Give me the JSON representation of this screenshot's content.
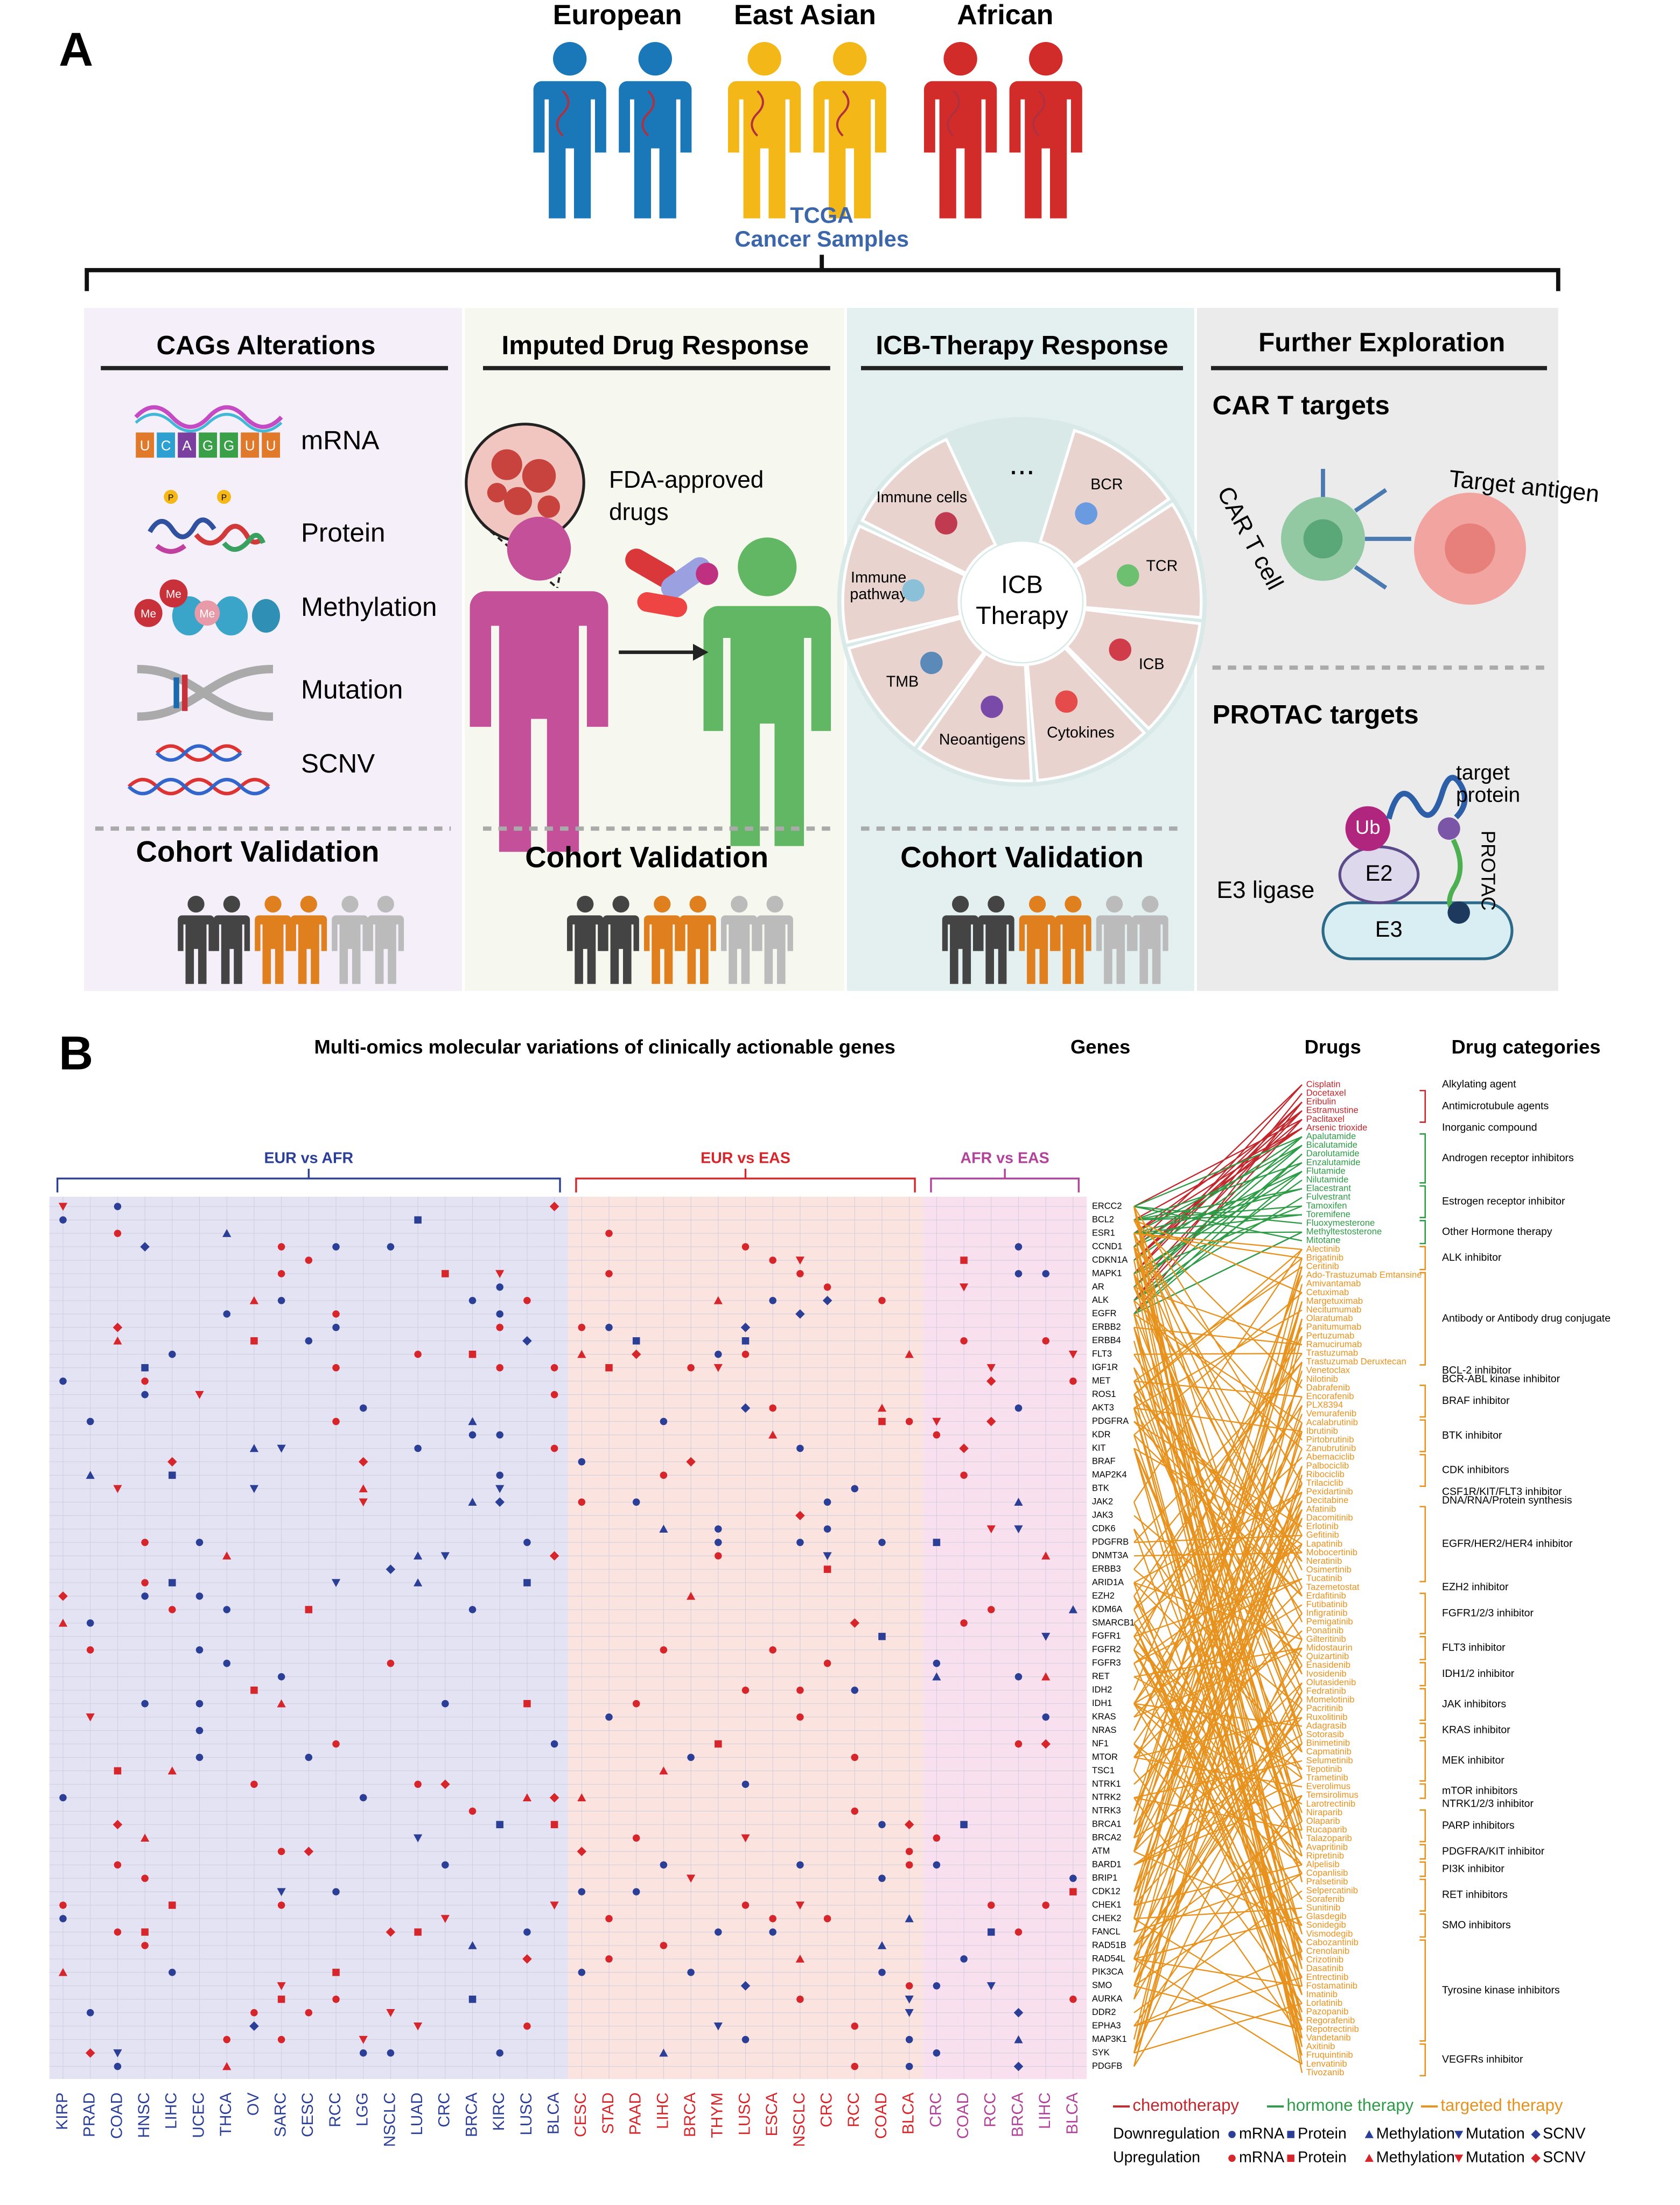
{
  "panel_a": {
    "label": "A",
    "populations": [
      "European",
      "East Asian",
      "African"
    ],
    "source": [
      "TCGA",
      "Cancer Samples"
    ],
    "cags": {
      "title": "CAGs  Alterations",
      "items": [
        "mRNA",
        "Protein",
        "Methylation",
        "Mutation",
        "SCNV"
      ],
      "mrna_bases": [
        "U",
        "C",
        "A",
        "G",
        "G",
        "U",
        "U"
      ],
      "phospho": "P",
      "methyl": "Me"
    },
    "drug_response": {
      "title": "Imputed Drug Response",
      "drugs": [
        "FDA-approved",
        "drugs"
      ]
    },
    "icb": {
      "title": "ICB-Therapy Response",
      "center": [
        "ICB",
        "Therapy"
      ],
      "more": "...",
      "segments": [
        [
          "BCR"
        ],
        [
          "TCR"
        ],
        [
          "ICB"
        ],
        [
          "Cytokines"
        ],
        [
          "Neoantigens"
        ],
        [
          "TMB"
        ],
        [
          "Immune",
          "pathway"
        ],
        [
          "Immune cells"
        ]
      ]
    },
    "further": {
      "title": "Further Exploration",
      "car_t": {
        "title": "CAR T targets",
        "antigen": "Target antigen",
        "cell": "CAR T cell"
      },
      "protac": {
        "title": "PROTAC targets",
        "target": [
          "target",
          "protein"
        ],
        "ub": "Ub",
        "e2": "E2",
        "e3": "E3",
        "ligase": "E3 ligase",
        "linker": "PROTAC"
      }
    },
    "validation": "Cohort Validation"
  },
  "panel_b": {
    "label": "B",
    "title": "Multi-omics molecular variations of clinically actionable genes",
    "genes_title": "Genes",
    "drugs_title": "Drugs",
    "categories_title": "Drug categories",
    "groups": [
      {
        "name": "EUR vs AFR",
        "color": "#2b3f97",
        "background": "#e4e3f3",
        "columns": [
          "KIRP",
          "PRAD",
          "COAD",
          "HNSC",
          "LIHC",
          "UCEC",
          "THCA",
          "OV",
          "SARC",
          "CESC",
          "RCC",
          "LGG",
          "NSCLC",
          "LUAD",
          "CRC",
          "BRCA",
          "KIRC",
          "LUSC",
          "BLCA"
        ]
      },
      {
        "name": "EUR vs EAS",
        "color": "#d7262b",
        "background": "#fbe3df",
        "columns": [
          "CESC",
          "STAD",
          "PAAD",
          "LIHC",
          "BRCA",
          "THYM",
          "LUSC",
          "ESCA",
          "NSCLC",
          "CRC",
          "RCC",
          "COAD",
          "BLCA"
        ]
      },
      {
        "name": "AFR vs EAS",
        "color": "#b1449a",
        "background": "#f8e0ee",
        "columns": [
          "CRC",
          "COAD",
          "RCC",
          "BRCA",
          "LIHC",
          "BLCA"
        ]
      }
    ],
    "genes": [
      "ERCC2",
      "BCL2",
      "ESR1",
      "CCND1",
      "CDKN1A",
      "MAPK1",
      "AR",
      "ALK",
      "EGFR",
      "ERBB2",
      "ERBB4",
      "FLT3",
      "IGF1R",
      "MET",
      "ROS1",
      "AKT3",
      "PDGFRA",
      "KDR",
      "KIT",
      "BRAF",
      "MAP2K4",
      "BTK",
      "JAK2",
      "JAK3",
      "CDK6",
      "PDGFRB",
      "DNMT3A",
      "ERBB3",
      "ARID1A",
      "EZH2",
      "KDM6A",
      "SMARCB1",
      "FGFR1",
      "FGFR2",
      "FGFR3",
      "RET",
      "IDH2",
      "IDH1",
      "KRAS",
      "NRAS",
      "NF1",
      "MTOR",
      "TSC1",
      "NTRK1",
      "NTRK2",
      "NTRK3",
      "BRCA1",
      "BRCA2",
      "ATM",
      "BARD1",
      "BRIP1",
      "CDK12",
      "CHEK1",
      "CHEK2",
      "FANCL",
      "RAD51B",
      "RAD54L",
      "PIK3CA",
      "SMO",
      "AURKA",
      "DDR2",
      "EPHA3",
      "MAP3K1",
      "SYK",
      "PDGFB"
    ],
    "classes": [
      {
        "name": "chemotherapy",
        "color": "#c1272d",
        "categories": [
          {
            "name": "Alkylating agent",
            "drugs": [
              "Cisplatin"
            ]
          },
          {
            "name": "Antimicrotubule agents",
            "drugs": [
              "Docetaxel",
              "Eribulin",
              "Estramustine",
              "Paclitaxel"
            ]
          },
          {
            "name": "Inorganic compound",
            "drugs": [
              "Arsenic trioxide"
            ]
          }
        ]
      },
      {
        "name": "hormone therapy",
        "color": "#2e9b47",
        "categories": [
          {
            "name": "Androgen receptor inhibitors",
            "drugs": [
              "Apalutamide",
              "Bicalutamide",
              "Darolutamide",
              "Enzalutamide",
              "Flutamide",
              "Nilutamide"
            ]
          },
          {
            "name": "Estrogen receptor inhibitor",
            "drugs": [
              "Elacestrant",
              "Fulvestrant",
              "Tamoxifen",
              "Toremifene"
            ]
          },
          {
            "name": "Other Hormone therapy",
            "drugs": [
              "Fluoxymesterone",
              "Methyltestosterone",
              "Mitotane"
            ]
          }
        ]
      },
      {
        "name": "targeted therapy",
        "color": "#e8921e",
        "categories": [
          {
            "name": "ALK inhibitor",
            "drugs": [
              "Alectinib",
              "Brigatinib",
              "Ceritinib"
            ]
          },
          {
            "name": "Antibody or Antibody drug conjugate",
            "drugs": [
              "Ado-Trastuzumab Emtansine",
              "Amivantamab",
              "Cetuximab",
              "Margetuximab",
              "Necitumumab",
              "Olaratumab",
              "Panitumumab",
              "Pertuzumab",
              "Ramucirumab",
              "Trastuzumab",
              "Trastuzumab Deruxtecan"
            ]
          },
          {
            "name": "BCL-2 inhibitor",
            "drugs": [
              "Venetoclax"
            ]
          },
          {
            "name": "BCR-ABL kinase inhibitor",
            "drugs": [
              "Nilotinib"
            ]
          },
          {
            "name": "BRAF inhibitor",
            "drugs": [
              "Dabrafenib",
              "Encorafenib",
              "PLX8394",
              "Vemurafenib"
            ]
          },
          {
            "name": "BTK inhibitor",
            "drugs": [
              "Acalabrutinib",
              "Ibrutinib",
              "Pirtobrutinib",
              "Zanubrutinib"
            ]
          },
          {
            "name": "CDK inhibitors",
            "drugs": [
              "Abemaciclib",
              "Palbociclib",
              "Ribociclib",
              "Trilaciclib"
            ]
          },
          {
            "name": "CSF1R/KIT/FLT3 inhibitor",
            "drugs": [
              "Pexidartinib"
            ]
          },
          {
            "name": "DNA/RNA/Protein synthesis",
            "drugs": [
              "Decitabine"
            ]
          },
          {
            "name": "EGFR/HER2/HER4 inhibitor",
            "drugs": [
              "Afatinib",
              "Dacomitinib",
              "Erlotinib",
              "Gefitinib",
              "Lapatinib",
              "Mobocertinib",
              "Neratinib",
              "Osimertinib",
              "Tucatinib"
            ]
          },
          {
            "name": "EZH2 inhibitor",
            "drugs": [
              "Tazemetostat"
            ]
          },
          {
            "name": "FGFR1/2/3  inhibitor",
            "drugs": [
              "Erdafitinib",
              "Futibatinib",
              "Infigratinib",
              "Pemigatinib",
              "Ponatinib"
            ]
          },
          {
            "name": "FLT3 inhibitor",
            "drugs": [
              "Gilteritinib",
              "Midostaurin",
              "Quizartinib"
            ]
          },
          {
            "name": "IDH1/2 inhibitor",
            "drugs": [
              "Enasidenib",
              "Ivosidenib",
              "Olutasidenib"
            ]
          },
          {
            "name": "JAK inhibitors",
            "drugs": [
              "Fedratinib",
              "Momelotinib",
              "Pacritinib",
              "Ruxolitinib"
            ]
          },
          {
            "name": "KRAS inhibitor",
            "drugs": [
              "Adagrasib",
              "Sotorasib"
            ]
          },
          {
            "name": "MEK inhibitor",
            "drugs": [
              "Binimetinib",
              "Capmatinib",
              "Selumetinib",
              "Tepotinib",
              "Trametinib"
            ]
          },
          {
            "name": "mTOR inhibitors",
            "drugs": [
              "Everolimus",
              "Temsirolimus"
            ]
          },
          {
            "name": "NTRK1/2/3 inhibitor",
            "drugs": [
              "Larotrectinib"
            ]
          },
          {
            "name": "PARP inhibitors",
            "drugs": [
              "Niraparib",
              "Olaparib",
              "Rucaparib",
              "Talazoparib"
            ]
          },
          {
            "name": "PDGFRA/KIT inhibitor",
            "drugs": [
              "Avapritinib",
              "Ripretinib"
            ]
          },
          {
            "name": "PI3K inhibitor",
            "drugs": [
              "Alpelisib",
              "Copanlisib"
            ]
          },
          {
            "name": "RET inhibitors",
            "drugs": [
              "Pralsetinib",
              "Selpercatinib",
              "Sorafenib",
              "Sunitinib"
            ]
          },
          {
            "name": "SMO inhibitors",
            "drugs": [
              "Glasdegib",
              "Sonidegib",
              "Vismodegib"
            ]
          },
          {
            "name": "Tyrosine kinase inhibitors",
            "drugs": [
              "Cabozantinib",
              "Crenolanib",
              "Crizotinib",
              "Dasatinib",
              "Entrectinib",
              "Fostamatinib",
              "Imatinib",
              "Lorlatinib",
              "Pazopanib",
              "Regorafenib",
              "Repotrectinib",
              "Vandetanib"
            ]
          },
          {
            "name": "VEGFRs inhibitor",
            "drugs": [
              "Axitinib",
              "Fruquintinib",
              "Lenvatinib",
              "Tivozanib"
            ]
          }
        ]
      }
    ],
    "legend": {
      "regulation": [
        {
          "name": "Downregulation",
          "color": "#2b3f97"
        },
        {
          "name": "Upregulation",
          "color": "#d7262b"
        }
      ],
      "types": [
        "mRNA",
        "Protein",
        "Methylation",
        "Mutation",
        "SCNV"
      ]
    }
  }
}
